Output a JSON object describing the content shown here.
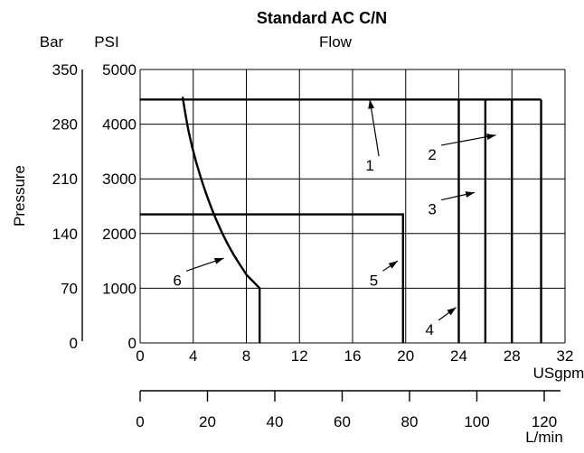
{
  "chart_data": {
    "type": "line",
    "title": "Standard AC C/N",
    "subtitle": "Flow",
    "ylabel": "Pressure",
    "y_left_units": "Bar",
    "y_right_units": "PSI",
    "xlabel": "USgpm",
    "x2label": "L/min",
    "xlim": [
      0,
      32
    ],
    "ylim": [
      0,
      5000
    ],
    "x_ticks": [
      "0",
      "4",
      "8",
      "12",
      "16",
      "20",
      "24",
      "28",
      "32"
    ],
    "x_tick_values": [
      0,
      4,
      8,
      12,
      16,
      20,
      24,
      28,
      32
    ],
    "psi_ticks": [
      "0",
      "1000",
      "2000",
      "3000",
      "4000",
      "5000"
    ],
    "psi_tick_values": [
      0,
      1000,
      2000,
      3000,
      4000,
      5000
    ],
    "bar_ticks": [
      "0",
      "70",
      "140",
      "210",
      "280",
      "350"
    ],
    "bar_tick_values": [
      0,
      1000,
      2000,
      3000,
      4000,
      5000
    ],
    "lpm_ticks": [
      "0",
      "20",
      "40",
      "60",
      "80",
      "100",
      "120"
    ],
    "lpm_tick_values": [
      0,
      20,
      40,
      60,
      80,
      100,
      120
    ],
    "series": [
      {
        "label": "1",
        "x": [
          0,
          30.2
        ],
        "y": [
          4450,
          4450
        ]
      },
      {
        "label": "2",
        "x": [
          28,
          28
        ],
        "y": [
          0,
          4450
        ]
      },
      {
        "label": "3",
        "x": [
          26,
          26
        ],
        "y": [
          0,
          4450
        ]
      },
      {
        "label": "4",
        "x": [
          24,
          24
        ],
        "y": [
          0,
          4450
        ]
      },
      {
        "label": "5",
        "x": [
          0,
          19.8,
          19.8
        ],
        "y": [
          2350,
          2350,
          0
        ]
      },
      {
        "label": "6",
        "x": [
          3.2,
          3.6,
          4.2,
          5.0,
          5.8,
          6.8,
          8.0,
          9.0,
          9.0
        ],
        "y": [
          4500,
          3900,
          3300,
          2700,
          2200,
          1700,
          1250,
          1000,
          0
        ]
      }
    ],
    "outline_extra": {
      "x": [
        30.2,
        30.2
      ],
      "y": [
        4450,
        0
      ]
    },
    "annotations": [
      {
        "label": "1",
        "text": [
          17.3,
          3250
        ],
        "tip": [
          17.3,
          4450
        ]
      },
      {
        "label": "2",
        "text": [
          22,
          3450
        ],
        "tip": [
          26.8,
          3800
        ]
      },
      {
        "label": "3",
        "text": [
          22,
          2450
        ],
        "tip": [
          25.2,
          2750
        ]
      },
      {
        "label": "4",
        "text": [
          21.8,
          250
        ],
        "tip": [
          23.8,
          650
        ]
      },
      {
        "label": "5",
        "text": [
          17.6,
          1150
        ],
        "tip": [
          19.4,
          1500
        ]
      },
      {
        "label": "6",
        "text": [
          2.8,
          1150
        ],
        "tip": [
          6.3,
          1550
        ]
      }
    ],
    "grid": true,
    "legend": "none"
  }
}
